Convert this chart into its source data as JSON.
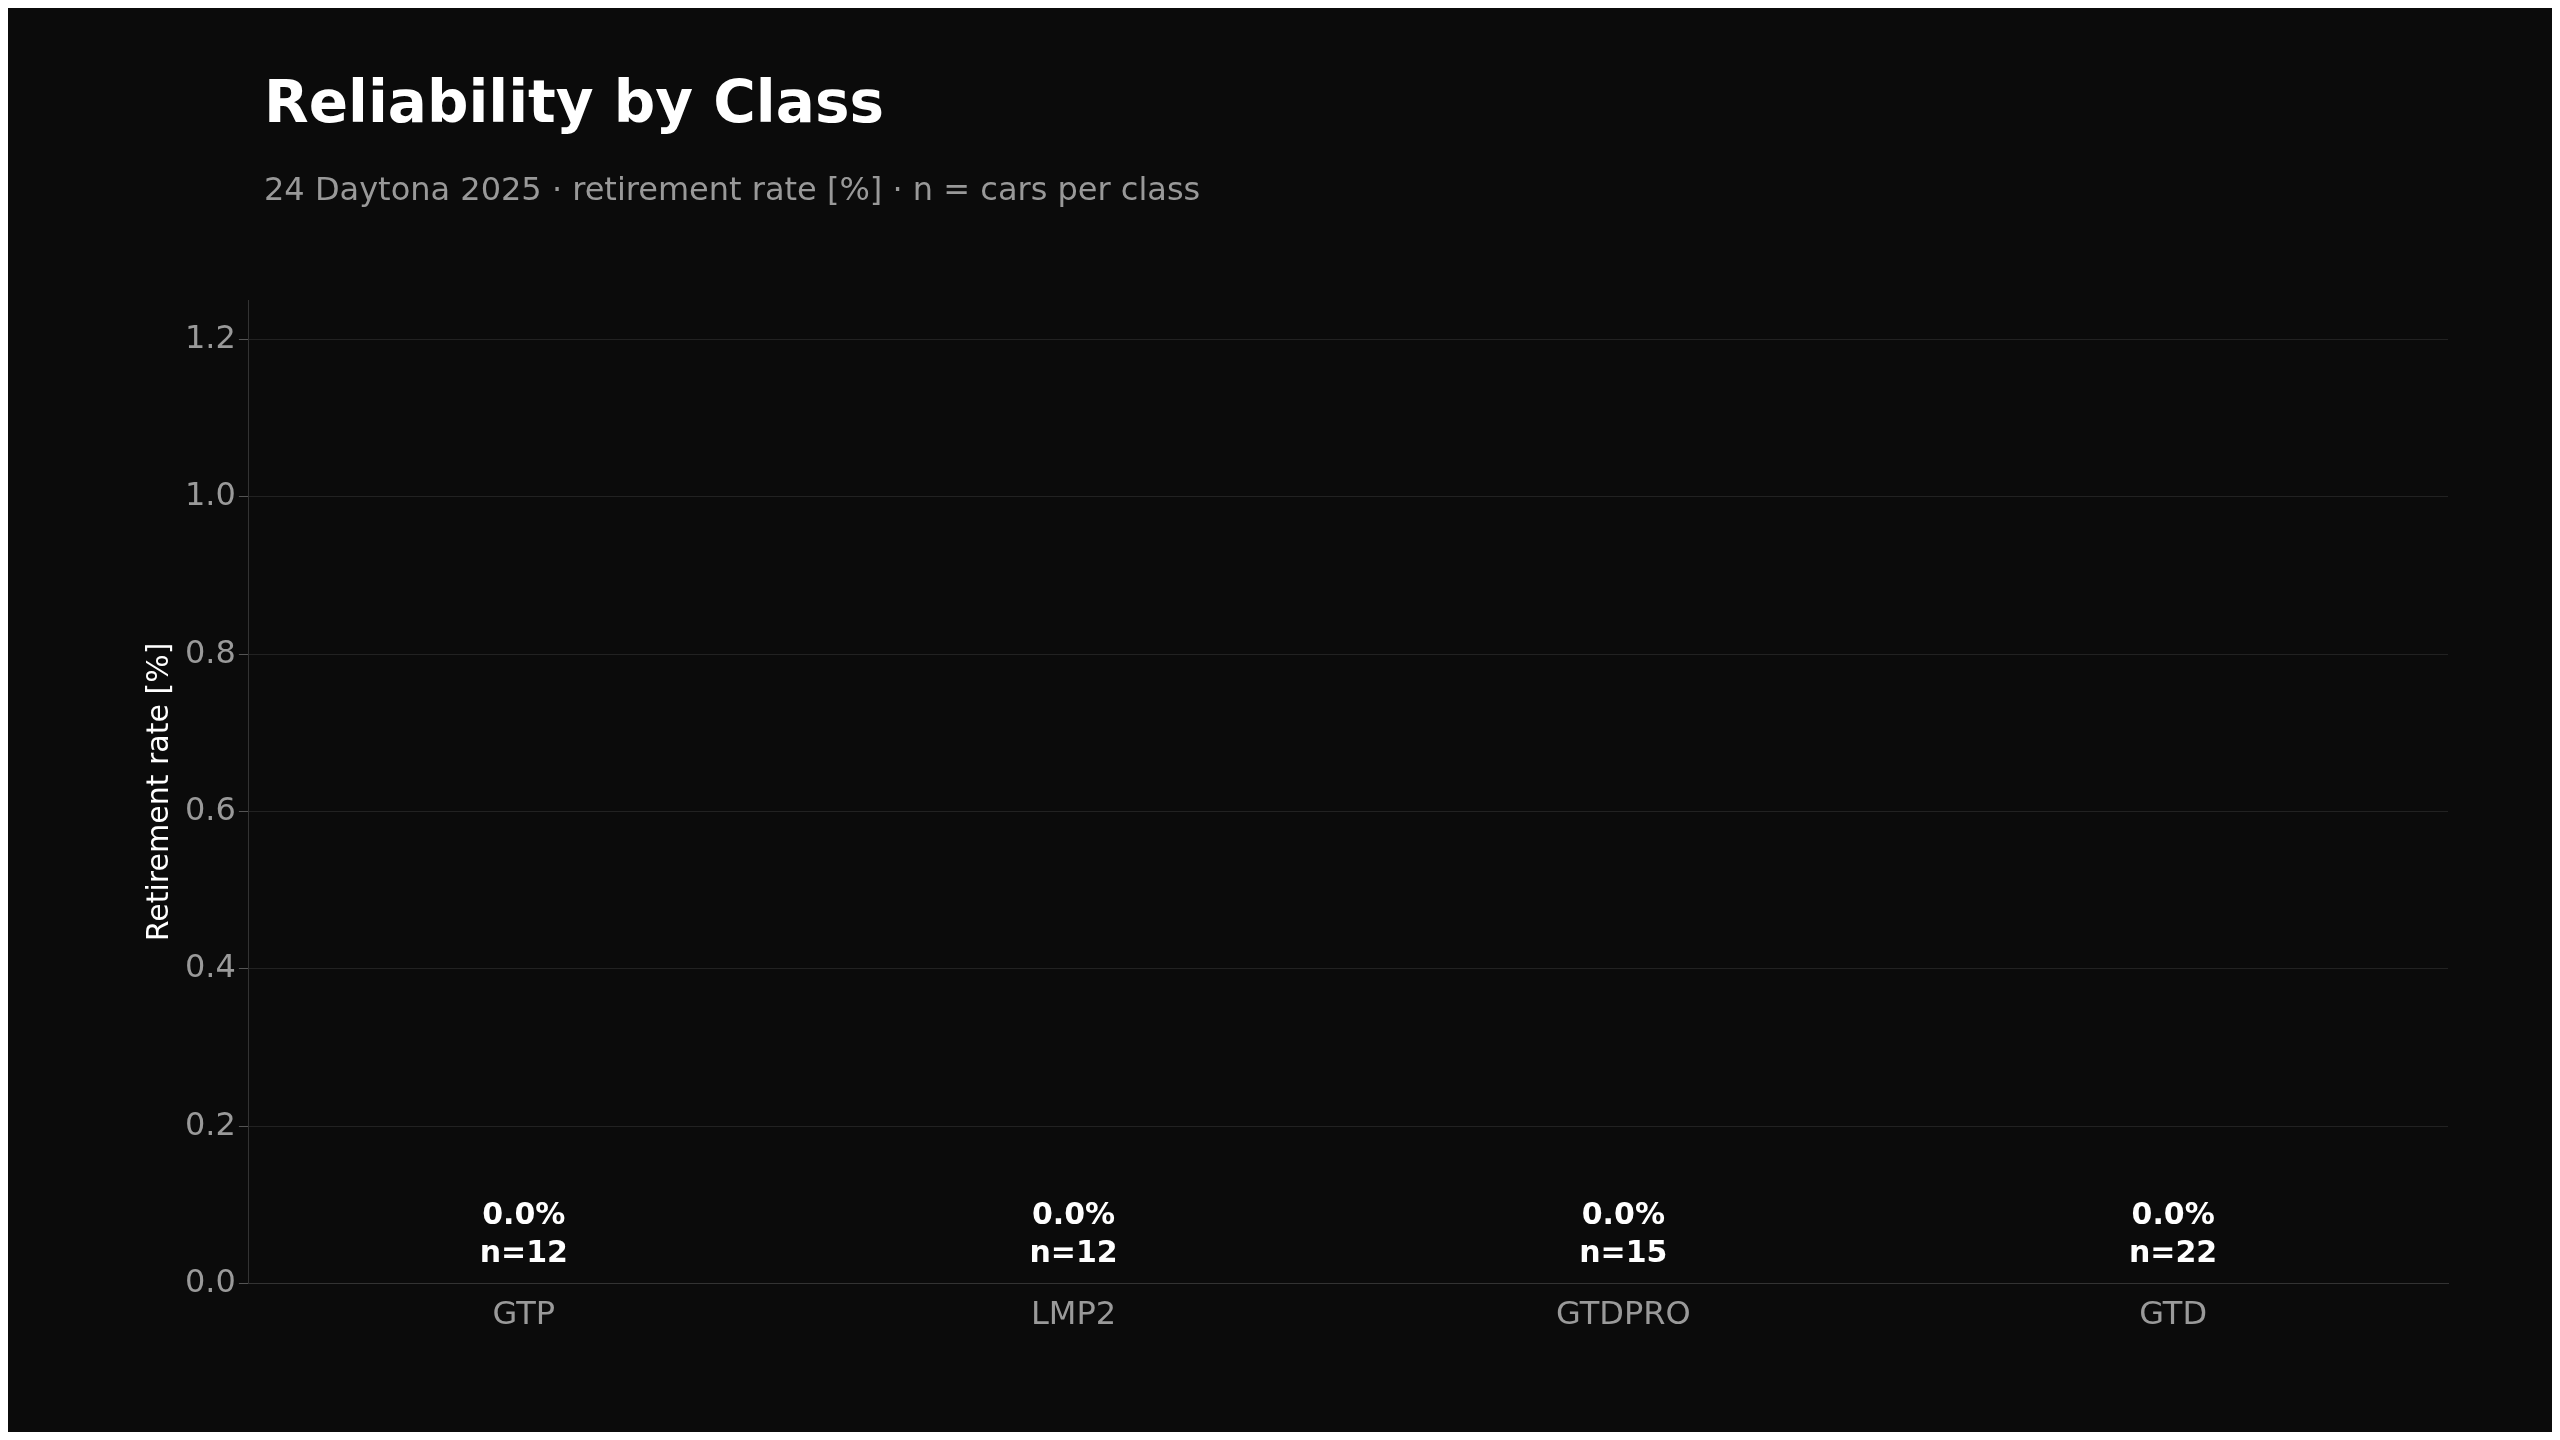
{
  "chart_data": {
    "type": "bar",
    "title": "Reliability by Class",
    "subtitle": "24 Daytona 2025 · retirement rate [%] · n = cars per class",
    "ylabel": "Retirement rate [%]",
    "categories": [
      "GTP",
      "LMP2",
      "GTDPRO",
      "GTD"
    ],
    "values": [
      0,
      0,
      0,
      0
    ],
    "value_labels": [
      "0.0%\nn=12",
      "0.0%\nn=12",
      "0.0%\nn=15",
      "0.0%\nn=22"
    ],
    "ylim": [
      0,
      1.25
    ],
    "yticks": [
      {
        "value": 0,
        "label": "0.0"
      },
      {
        "value": 0.2,
        "label": "0.2"
      },
      {
        "value": 0.4,
        "label": "0.4"
      },
      {
        "value": 0.6,
        "label": "0.6"
      },
      {
        "value": 0.8,
        "label": "0.8"
      },
      {
        "value": 1.0,
        "label": "1.0"
      },
      {
        "value": 1.2,
        "label": "1.2"
      }
    ],
    "grid": "y",
    "legend": false
  }
}
